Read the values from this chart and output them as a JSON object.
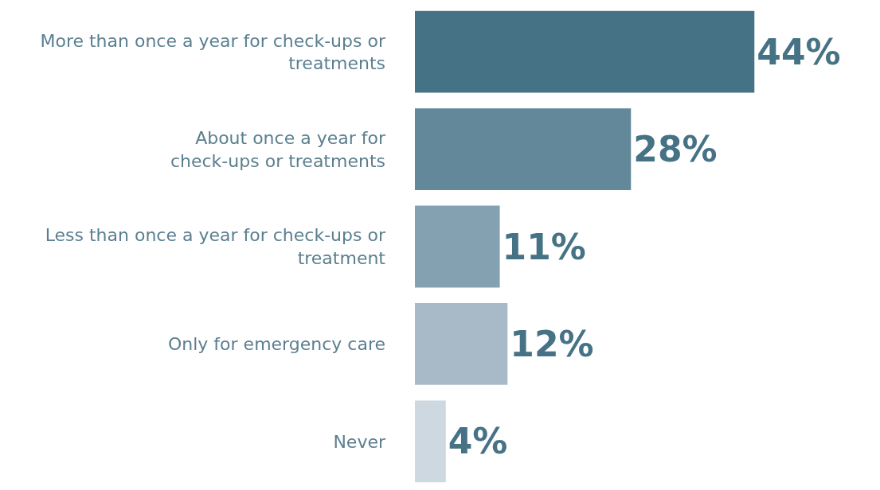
{
  "chart_data": {
    "type": "bar",
    "orientation": "horizontal",
    "categories": [
      "More than once a year for check-ups or\ntreatments",
      "About once a year for\ncheck-ups or treatments",
      "Less than once a year for check-ups or\ntreatment",
      "Only for emergency care",
      "Never"
    ],
    "values": [
      44,
      28,
      11,
      12,
      4
    ],
    "colors": [
      "#467285",
      "#628899",
      "#84a1b2",
      "#a8bac7",
      "#cdd8e0"
    ],
    "value_labels": [
      "44%",
      "28%",
      "11%",
      "12%",
      "4%"
    ]
  }
}
